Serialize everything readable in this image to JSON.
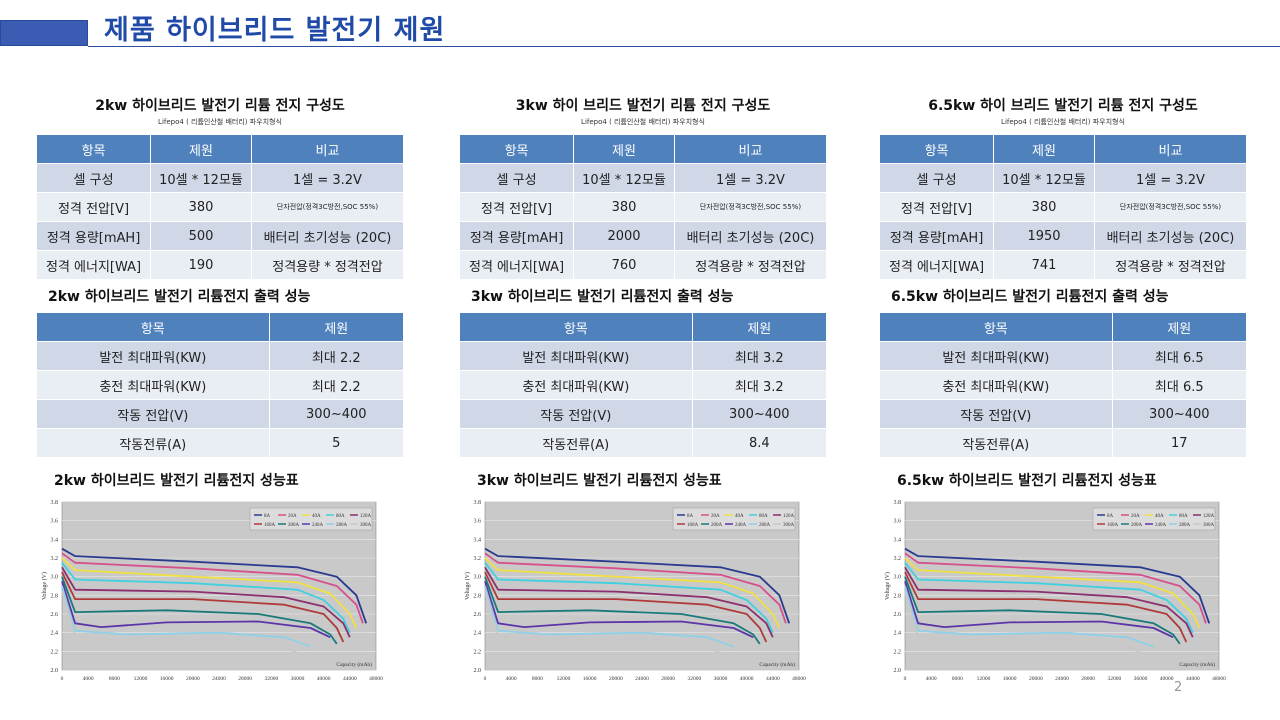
{
  "header": {
    "title": "제품 하이브리드 발전기 제원"
  },
  "page_number": "2",
  "columns": [
    {
      "config_title": "2kw 하이브리드 발전기 리튬 전지 구성도",
      "config_sub": "Lifepo4 ( 리튬인산철 배터리) 파우치형식",
      "config_headers": [
        "항목",
        "제원",
        "비교"
      ],
      "config_rows": [
        [
          "셀 구성",
          "10셀 * 12모듈",
          "1셀 = 3.2V"
        ],
        [
          "정격 전압[V]",
          "380",
          "단자전압(정격3C방전,SOC 55%)"
        ],
        [
          "정격 용량[mAH]",
          "500",
          "배터리 초기성능 (20C)"
        ],
        [
          "정격 에너지[WA]",
          "190",
          "정격용량 * 정격전압"
        ]
      ],
      "perf_title": "2kw 하이브리드 발전기 리튬전지 출력 성능",
      "perf_headers": [
        "항목",
        "제원"
      ],
      "perf_rows": [
        [
          "발전 최대파워(KW)",
          "최대 2.2"
        ],
        [
          "충전 최대파워(KW)",
          "최대 2.2"
        ],
        [
          "작동 전압(V)",
          "300~400"
        ],
        [
          "작동전류(A)",
          "5"
        ]
      ],
      "chart_title": "2kw 하이브리드 발전기 리튬전지 성능표"
    },
    {
      "config_title": "3kw 하이 브리드 발전기 리튬 전지 구성도",
      "config_sub": "Lifepo4 ( 리튬인산철 배터리) 파우치형식",
      "config_headers": [
        "항목",
        "제원",
        "비교"
      ],
      "config_rows": [
        [
          "셀 구성",
          "10셀 * 12모듈",
          "1셀 = 3.2V"
        ],
        [
          "정격 전압[V]",
          "380",
          "단자전압(정격3C방전,SOC 55%)"
        ],
        [
          "정격 용량[mAH]",
          "2000",
          "배터리 초기성능 (20C)"
        ],
        [
          "정격 에너지[WA]",
          "760",
          "정격용량 * 정격전압"
        ]
      ],
      "perf_title": "3kw 하이브리드 발전기 리튬전지 출력 성능",
      "perf_headers": [
        "항목",
        "제원"
      ],
      "perf_rows": [
        [
          "발전 최대파워(KW)",
          "최대 3.2"
        ],
        [
          "충전 최대파워(KW)",
          "최대 3.2"
        ],
        [
          "작동 전압(V)",
          "300~400"
        ],
        [
          "작동전류(A)",
          "8.4"
        ]
      ],
      "chart_title": "3kw 하이브리드 발전기 리튬전지 성능표"
    },
    {
      "config_title": "6.5kw 하이 브리드 발전기 리튬 전지 구성도",
      "config_sub": "Lifepo4 ( 리튬인산철 배터리) 파우치형식",
      "config_headers": [
        "항목",
        "제원",
        "비교"
      ],
      "config_rows": [
        [
          "셀 구성",
          "10셀 * 12모듈",
          "1셀 = 3.2V"
        ],
        [
          "정격 전압[V]",
          "380",
          "단자전압(정격3C방전,SOC 55%)"
        ],
        [
          "정격 용량[mAH]",
          "1950",
          "배터리 초기성능 (20C)"
        ],
        [
          "정격 에너지[WA]",
          "741",
          "정격용량 * 정격전압"
        ]
      ],
      "perf_title": "6.5kw 하이브리드 발전기 리튬전지 출력 성능",
      "perf_headers": [
        "항목",
        "제원"
      ],
      "perf_rows": [
        [
          "발전 최대파워(KW)",
          "최대 6.5"
        ],
        [
          "충전 최대파워(KW)",
          "최대 6.5"
        ],
        [
          "작동 전압(V)",
          "300~400"
        ],
        [
          "작동전류(A)",
          "17"
        ]
      ],
      "chart_title": "6.5kw 하이브리드 발전기 리튬전지 성능표"
    }
  ],
  "chart_data": {
    "type": "line",
    "ylabel": "Voltage (V)",
    "xlabel": "Capacity (mAh)",
    "xlim": [
      0,
      48000
    ],
    "ylim": [
      2.0,
      3.8
    ],
    "x_ticks": [
      0,
      4000,
      8000,
      12000,
      16000,
      20000,
      24000,
      28000,
      32000,
      36000,
      40000,
      44000,
      48000
    ],
    "y_ticks": [
      2.0,
      2.2,
      2.4,
      2.6,
      2.8,
      3.0,
      3.2,
      3.4,
      3.6,
      3.8
    ],
    "grid": true,
    "legend_position": "top-right",
    "series": [
      {
        "name": "8A",
        "color": "#2a3a8f",
        "values": [
          [
            0,
            3.3
          ],
          [
            2000,
            3.22
          ],
          [
            20000,
            3.16
          ],
          [
            36000,
            3.1
          ],
          [
            42000,
            3.0
          ],
          [
            45000,
            2.8
          ],
          [
            46500,
            2.5
          ]
        ]
      },
      {
        "name": "20A",
        "color": "#d6508c",
        "values": [
          [
            0,
            3.25
          ],
          [
            2000,
            3.15
          ],
          [
            20000,
            3.09
          ],
          [
            36000,
            3.02
          ],
          [
            42000,
            2.9
          ],
          [
            45000,
            2.7
          ],
          [
            46000,
            2.5
          ]
        ]
      },
      {
        "name": "40A",
        "color": "#f0e040",
        "values": [
          [
            0,
            3.2
          ],
          [
            2000,
            3.07
          ],
          [
            20000,
            3.0
          ],
          [
            36000,
            2.94
          ],
          [
            41000,
            2.82
          ],
          [
            44000,
            2.6
          ],
          [
            45000,
            2.45
          ]
        ]
      },
      {
        "name": "80A",
        "color": "#40d0e0",
        "values": [
          [
            0,
            3.15
          ],
          [
            2000,
            2.97
          ],
          [
            20000,
            2.93
          ],
          [
            36000,
            2.86
          ],
          [
            40000,
            2.75
          ],
          [
            43000,
            2.55
          ],
          [
            44000,
            2.4
          ]
        ]
      },
      {
        "name": "120A",
        "color": "#8b2f6e",
        "values": [
          [
            0,
            3.1
          ],
          [
            2000,
            2.86
          ],
          [
            20000,
            2.84
          ],
          [
            34000,
            2.78
          ],
          [
            40000,
            2.68
          ],
          [
            43000,
            2.5
          ],
          [
            44000,
            2.35
          ]
        ]
      },
      {
        "name": "160A",
        "color": "#b03a3a",
        "values": [
          [
            0,
            3.05
          ],
          [
            2000,
            2.76
          ],
          [
            20000,
            2.76
          ],
          [
            34000,
            2.7
          ],
          [
            40000,
            2.6
          ],
          [
            42000,
            2.45
          ],
          [
            43000,
            2.3
          ]
        ]
      },
      {
        "name": "200A",
        "color": "#1a7a7a",
        "values": [
          [
            0,
            3.0
          ],
          [
            2000,
            2.62
          ],
          [
            16000,
            2.64
          ],
          [
            30000,
            2.6
          ],
          [
            38000,
            2.5
          ],
          [
            41000,
            2.38
          ],
          [
            42000,
            2.28
          ]
        ]
      },
      {
        "name": "240A",
        "color": "#5b35a8",
        "values": [
          [
            0,
            2.95
          ],
          [
            2000,
            2.5
          ],
          [
            6000,
            2.46
          ],
          [
            16000,
            2.51
          ],
          [
            30000,
            2.52
          ],
          [
            38000,
            2.45
          ],
          [
            41000,
            2.35
          ]
        ]
      },
      {
        "name": "280A",
        "color": "#8fd0e8",
        "values": [
          [
            0,
            2.9
          ],
          [
            2000,
            2.42
          ],
          [
            10000,
            2.38
          ],
          [
            24000,
            2.4
          ],
          [
            34000,
            2.35
          ],
          [
            38000,
            2.25
          ]
        ]
      },
      {
        "name": "300A",
        "color": "#c8c8c8",
        "values": [
          [
            0,
            2.85
          ],
          [
            2000,
            2.36
          ],
          [
            10000,
            2.32
          ],
          [
            24000,
            2.34
          ],
          [
            34000,
            2.25
          ],
          [
            38000,
            2.12
          ]
        ]
      }
    ]
  }
}
